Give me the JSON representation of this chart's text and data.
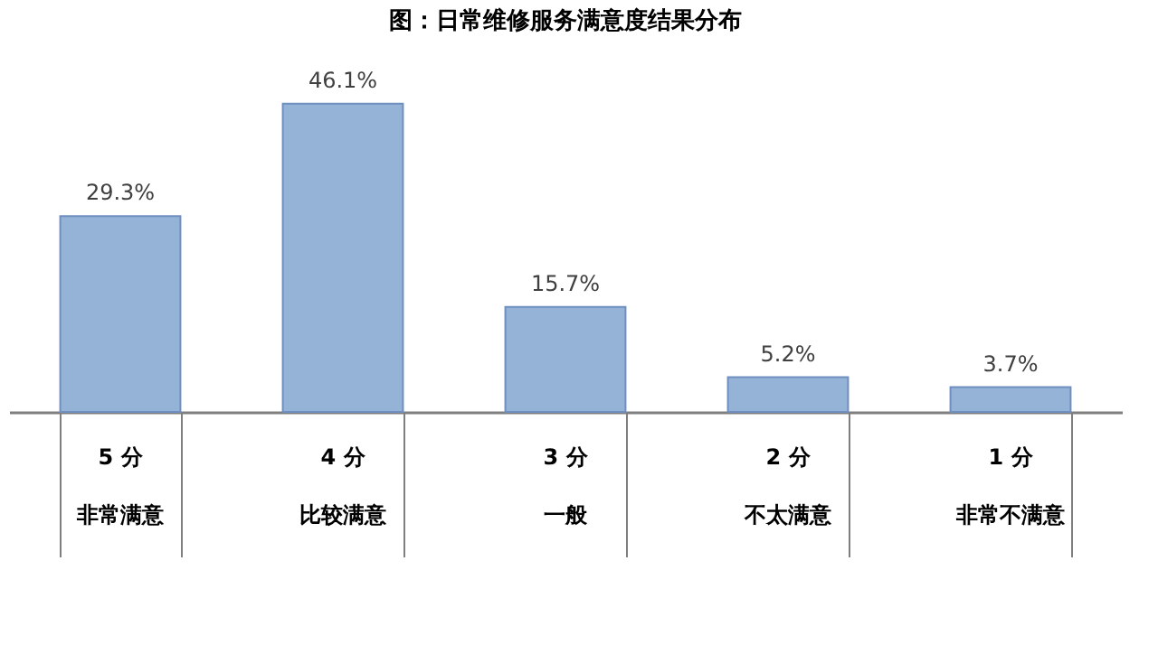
{
  "chart_data": {
    "type": "bar",
    "title": "图：日常维修服务满意度结果分布",
    "categories": [
      "5 分非常满意",
      "4 分比较满意",
      "3 分一般",
      "2 分不太满意",
      "1 分非常不满意"
    ],
    "values": [
      29.3,
      46.1,
      15.7,
      5.2,
      3.7
    ],
    "value_labels": [
      "29.3%",
      "46.1%",
      "15.7%",
      "5.2%",
      "3.7%"
    ],
    "color": "#95b3d7",
    "grid": false
  }
}
